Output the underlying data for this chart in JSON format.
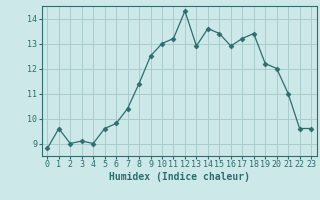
{
  "x": [
    0,
    1,
    2,
    3,
    4,
    5,
    6,
    7,
    8,
    9,
    10,
    11,
    12,
    13,
    14,
    15,
    16,
    17,
    18,
    19,
    20,
    21,
    22,
    23
  ],
  "y": [
    8.8,
    9.6,
    9.0,
    9.1,
    9.0,
    9.6,
    9.8,
    10.4,
    11.4,
    12.5,
    13.0,
    13.2,
    14.3,
    12.9,
    13.6,
    13.4,
    12.9,
    13.2,
    13.4,
    12.2,
    12.0,
    11.0,
    9.6,
    9.6
  ],
  "line_color": "#2d6e6e",
  "marker": "D",
  "marker_size": 2.5,
  "bg_color": "#cce8e8",
  "grid_color": "#aacccc",
  "xlabel": "Humidex (Indice chaleur)",
  "ylim": [
    8.5,
    14.5
  ],
  "xlim": [
    -0.5,
    23.5
  ],
  "yticks": [
    9,
    10,
    11,
    12,
    13,
    14
  ],
  "xticks": [
    0,
    1,
    2,
    3,
    4,
    5,
    6,
    7,
    8,
    9,
    10,
    11,
    12,
    13,
    14,
    15,
    16,
    17,
    18,
    19,
    20,
    21,
    22,
    23
  ],
  "tick_color": "#2d6e6e",
  "label_color": "#2d6e6e",
  "font_size_label": 7,
  "font_size_tick": 6
}
